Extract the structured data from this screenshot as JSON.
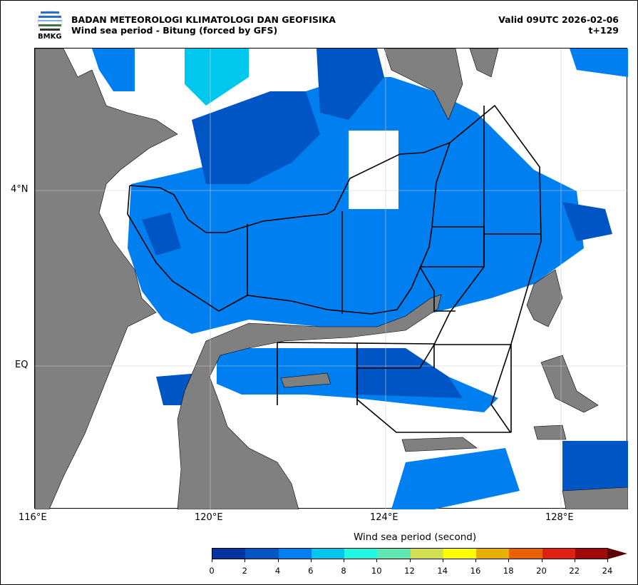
{
  "header": {
    "logo_text": "BMKG",
    "agency": "BADAN METEOROLOGI KLIMATOLOGI DAN GEOFISIKA",
    "subtitle": "Wind sea period - Bitung (forced by GFS)",
    "valid": "Valid 09UTC 2026-02-06",
    "step": "t+129"
  },
  "axes": {
    "lon_labels": [
      "116°E",
      "120°E",
      "124°E",
      "128°E"
    ],
    "lat_labels": [
      "4°N",
      "EQ"
    ]
  },
  "colorbar": {
    "title": "Wind sea period (second)",
    "ticks": [
      "0",
      "2",
      "4",
      "6",
      "8",
      "10",
      "12",
      "14",
      "16",
      "18",
      "20",
      "22",
      "24"
    ],
    "colors": [
      "#0033a0",
      "#0055c4",
      "#0080f0",
      "#00c8ec",
      "#20f8e0",
      "#60e8b0",
      "#d0e050",
      "#ffff00",
      "#e8b000",
      "#e86000",
      "#e02010",
      "#a00a0a"
    ],
    "extend_color": "#5a0000"
  },
  "colors": {
    "land": "#808080",
    "sea_2_4": "#0055c4",
    "sea_4_6": "#0080f0",
    "sea_6_8": "#00c8ec"
  }
}
